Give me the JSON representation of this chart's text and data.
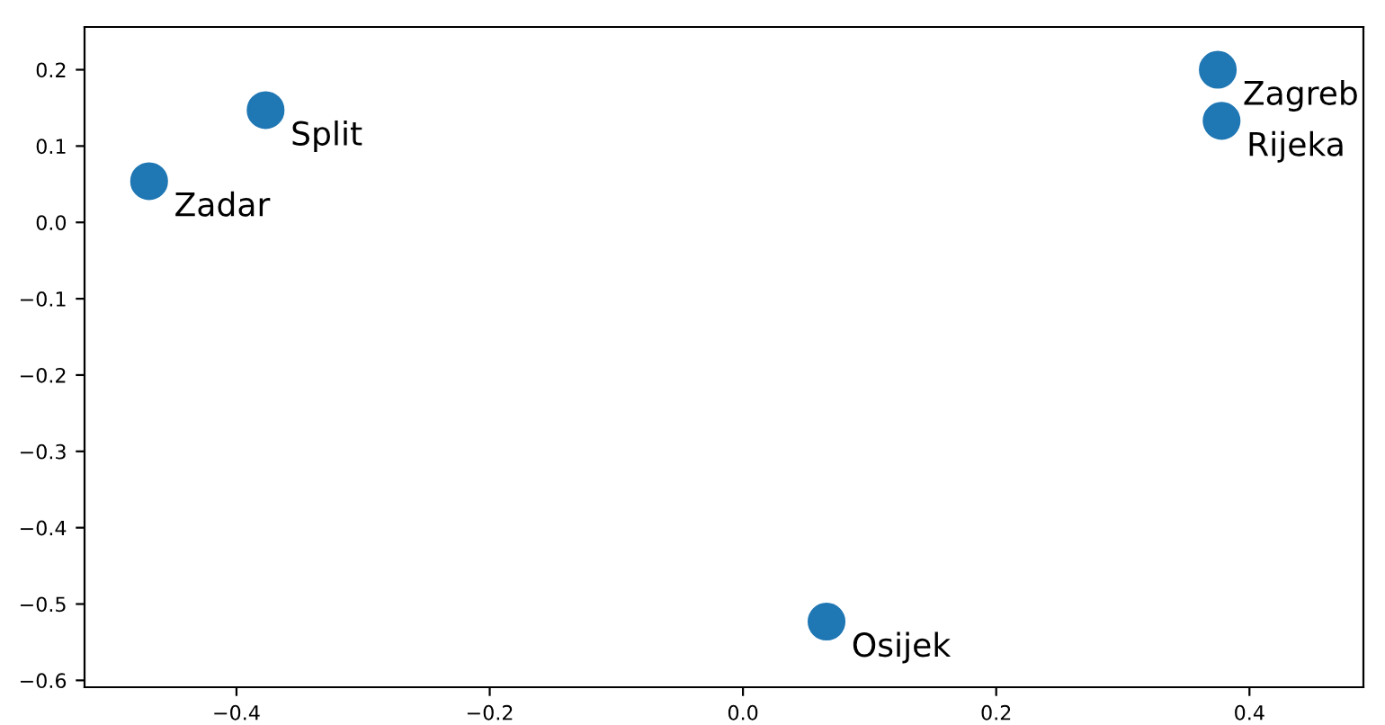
{
  "chart_data": {
    "type": "scatter",
    "x": [
      -0.469,
      -0.377,
      0.375,
      0.378,
      0.066
    ],
    "values": [
      0.054,
      0.147,
      0.2,
      0.133,
      -0.523
    ],
    "color": "#1f77b4",
    "marker": "circle",
    "grid": false,
    "xlim": [
      -0.52,
      0.49
    ],
    "ylim": [
      -0.609,
      0.256
    ],
    "xticks": [
      {
        "value": -0.4,
        "label": "−0.4"
      },
      {
        "value": -0.2,
        "label": "−0.2"
      },
      {
        "value": 0,
        "label": "0.0"
      },
      0.2,
      0.4
    ],
    "yticks": [
      {
        "value": -0.6,
        "label": "−0.6"
      },
      {
        "value": -0.5,
        "label": "−0.5"
      },
      {
        "value": -0.4,
        "label": "−0.4"
      },
      {
        "value": -0.3,
        "label": "−0.3"
      },
      {
        "value": -0.2,
        "label": "−0.2"
      },
      {
        "value": -0.1,
        "label": "−0.1"
      },
      {
        "value": 0,
        "label": "0.0"
      },
      0.1,
      0.2
    ],
    "annotations": [
      {
        "text": "Zadar",
        "x": -0.469,
        "y": 0.054
      },
      {
        "text": "Split",
        "x": -0.377,
        "y": 0.147
      },
      {
        "text": "Zagreb",
        "x": 0.375,
        "y": 0.2
      },
      {
        "text": "Rijeka",
        "x": 0.378,
        "y": 0.133
      },
      {
        "text": "Osijek",
        "x": 0.066,
        "y": -0.523
      }
    ]
  }
}
